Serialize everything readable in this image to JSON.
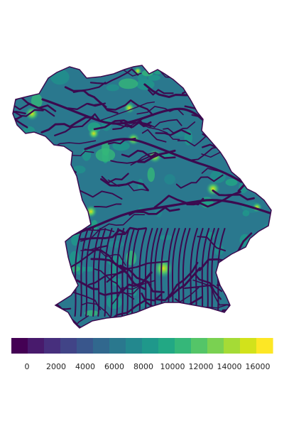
{
  "map": {
    "fill_low": "#440154",
    "fill_high": "#fde725",
    "river_color": "#3b0a4f",
    "hotspot_color": "#d8e219"
  },
  "legend": {
    "min": 0,
    "max": 16000,
    "tick_labels": [
      "0",
      "2000",
      "4000",
      "6000",
      "8000",
      "10000",
      "12000",
      "14000",
      "16000"
    ],
    "tick_values": [
      0,
      2000,
      4000,
      6000,
      8000,
      10000,
      12000,
      14000,
      16000
    ],
    "colors": [
      "#440154",
      "#481a6c",
      "#472f7d",
      "#414487",
      "#39568c",
      "#31688e",
      "#2a788e",
      "#23888e",
      "#1f988b",
      "#22a884",
      "#35b779",
      "#54c568",
      "#7ad151",
      "#a5db36",
      "#d2e21b",
      "#fde725"
    ]
  }
}
